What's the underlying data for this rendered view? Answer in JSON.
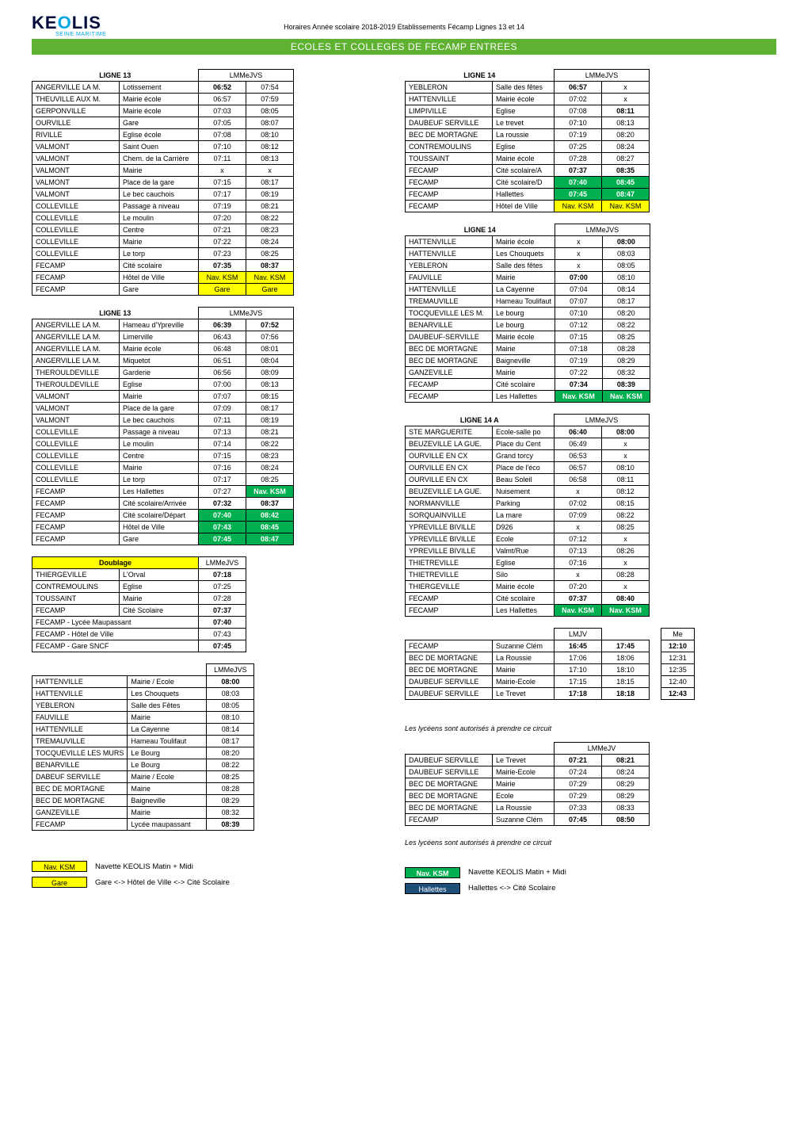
{
  "header": {
    "logo_main": "KE",
    "logo_o": "O",
    "logo_rest": "LIS",
    "logo_sub": "SEINE MARITIME",
    "top_title": "Horaires Année scolaire 2018-2019 Etablissements Fécamp Lignes 13 et 14",
    "banner": "ECOLES ET COLLEGES DE FECAMP ENTREES"
  },
  "colw": {
    "place": 110,
    "stop": 100,
    "t": 60
  },
  "t1": {
    "title": "LIGNE 13",
    "days": "LMMeJVS",
    "rows": [
      [
        "ANGERVILLE LA M.",
        "Lotissement",
        "06:52",
        "07:54",
        "b",
        "",
        ""
      ],
      [
        "THEUVILLE AUX M.",
        "Mairie école",
        "06:57",
        "07:59",
        "",
        "",
        ""
      ],
      [
        "GERPONVILLE",
        "Mairie école",
        "07:03",
        "08:05",
        "",
        "",
        ""
      ],
      [
        "OURVILLE",
        "Gare",
        "07:05",
        "08:07",
        "",
        "",
        ""
      ],
      [
        "RIVILLE",
        "Eglise école",
        "07:08",
        "08:10",
        "",
        "",
        ""
      ],
      [
        "VALMONT",
        "Saint Ouen",
        "07:10",
        "08:12",
        "",
        "",
        ""
      ],
      [
        "VALMONT",
        "Chem. de la Carrière",
        "07:11",
        "08:13",
        "",
        "",
        ""
      ],
      [
        "VALMONT",
        "Mairie",
        "x",
        "x",
        "",
        "",
        ""
      ],
      [
        "VALMONT",
        "Place de la gare",
        "07:15",
        "08:17",
        "",
        "",
        ""
      ],
      [
        "VALMONT",
        "Le bec cauchois",
        "07:17",
        "08:19",
        "",
        "",
        ""
      ],
      [
        "COLLEVILLE",
        "Passage à niveau",
        "07:19",
        "08:21",
        "",
        "",
        ""
      ],
      [
        "COLLEVILLE",
        "Le moulin",
        "07:20",
        "08:22",
        "",
        "",
        ""
      ],
      [
        "COLLEVILLE",
        "Centre",
        "07:21",
        "08:23",
        "",
        "",
        ""
      ],
      [
        "COLLEVILLE",
        "Mairie",
        "07:22",
        "08:24",
        "",
        "",
        ""
      ],
      [
        "COLLEVILLE",
        "Le torp",
        "07:23",
        "08:25",
        "",
        "",
        ""
      ],
      [
        "FECAMP",
        "Cité scolaire",
        "07:35",
        "08:37",
        "b",
        "b",
        ""
      ],
      [
        "FECAMP",
        "Hôtel de Ville",
        "Nav. KSM",
        "Nav. KSM",
        "",
        "",
        "yellow"
      ],
      [
        "FECAMP",
        "Gare",
        "Gare",
        "Gare",
        "",
        "",
        "yellow"
      ]
    ]
  },
  "t2": {
    "title": "LIGNE 13",
    "days": "LMMeJVS",
    "rows": [
      [
        "ANGERVILLE LA M.",
        "Hameau d'Ypreville",
        "06:39",
        "07:52",
        "b",
        "b",
        ""
      ],
      [
        "ANGERVILLE LA M.",
        "Limerville",
        "06:43",
        "07:56",
        "",
        "",
        ""
      ],
      [
        "ANGERVILLE LA M.",
        "Mairie école",
        "06:48",
        "08:01",
        "",
        "",
        ""
      ],
      [
        "ANGERVILLE LA M.",
        "Miquetot",
        "06:51",
        "08:04",
        "",
        "",
        ""
      ],
      [
        "THEROULDEVILLE",
        "Garderie",
        "06:56",
        "08:09",
        "",
        "",
        ""
      ],
      [
        "THEROULDEVILLE",
        "Eglise",
        "07:00",
        "08:13",
        "",
        "",
        ""
      ],
      [
        "VALMONT",
        "Mairie",
        "07:07",
        "08:15",
        "",
        "",
        ""
      ],
      [
        "VALMONT",
        "Place de la gare",
        "07:09",
        "08:17",
        "",
        "",
        ""
      ],
      [
        "VALMONT",
        "Le bec cauchois",
        "07:11",
        "08:19",
        "",
        "",
        ""
      ],
      [
        "COLLEVILLE",
        "Passage à niveau",
        "07:13",
        "08:21",
        "",
        "",
        ""
      ],
      [
        "COLLEVILLE",
        "Le moulin",
        "07:14",
        "08:22",
        "",
        "",
        ""
      ],
      [
        "COLLEVILLE",
        "Centre",
        "07:15",
        "08:23",
        "",
        "",
        ""
      ],
      [
        "COLLEVILLE",
        "Mairie",
        "07:16",
        "08:24",
        "",
        "",
        ""
      ],
      [
        "COLLEVILLE",
        "Le torp",
        "07:17",
        "08:25",
        "",
        "",
        ""
      ],
      [
        "FECAMP",
        "Les Hallettes",
        "07:27",
        "Nav. KSM",
        "",
        "",
        "|green2"
      ],
      [
        "FECAMP",
        "Cité scolaire/Arrivée",
        "07:32",
        "08:37",
        "b",
        "b",
        ""
      ],
      [
        "FECAMP",
        "Cité scolaire/Départ",
        "07:40",
        "08:42",
        "b",
        "b",
        "green"
      ],
      [
        "FECAMP",
        "Hôtel de Ville",
        "07:43",
        "08:45",
        "",
        "",
        "green"
      ],
      [
        "FECAMP",
        "Gare",
        "07:45",
        "08:47",
        "b",
        "b",
        "green"
      ]
    ]
  },
  "t3": {
    "title": "Doublage",
    "days": "LMMeJVS",
    "title_bg": "yellow",
    "rows": [
      [
        "THIERGEVILLE",
        "L'Orval",
        "07:18",
        "b"
      ],
      [
        "CONTREMOULINS",
        "Eglise",
        "07:25",
        ""
      ],
      [
        "TOUSSAINT",
        "Mairie",
        "07:28",
        ""
      ],
      [
        "FECAMP",
        "Cité Scolaire",
        "07:37",
        "b"
      ]
    ],
    "extra": [
      [
        "FECAMP - Lycée Maupassant",
        "07:40",
        "b"
      ],
      [
        "FECAMP - Hôtel de Ville",
        "07:43",
        ""
      ],
      [
        "FECAMP - Gare SNCF",
        "07:45",
        "b"
      ]
    ]
  },
  "t4": {
    "days": "LMMeJVS",
    "rows": [
      [
        "HATTENVILLE",
        "Mairie / Ecole",
        "08:00",
        "b"
      ],
      [
        "HATTENVILLE",
        "Les Chouquets",
        "08:03",
        ""
      ],
      [
        "YEBLERON",
        "Salle des Fêtes",
        "08:05",
        ""
      ],
      [
        "FAUVILLE",
        "Mairie",
        "08:10",
        ""
      ],
      [
        "HATTENVILLE",
        "La Cayenne",
        "08:14",
        ""
      ],
      [
        "TREMAUVILLE",
        "Hameau Toulifaut",
        "08:17",
        ""
      ],
      [
        "TOCQUEVILLE LES MURS",
        "Le Bourg",
        "08:20",
        ""
      ],
      [
        "BENARVILLE",
        "Le Bourg",
        "08:22",
        ""
      ],
      [
        "DABEUF SERVILLE",
        "Mairie / Ecole",
        "08:25",
        ""
      ],
      [
        "BEC DE MORTAGNE",
        "Mairie",
        "08:28",
        ""
      ],
      [
        "BEC DE MORTAGNE",
        "Baigneville",
        "08:29",
        ""
      ],
      [
        "GANZEVILLE",
        "Mairie",
        "08:32",
        ""
      ],
      [
        "FECAMP",
        "Lycée maupassant",
        "08:39",
        "b"
      ]
    ]
  },
  "r1": {
    "title": "LIGNE 14",
    "days": "LMMeJVS",
    "rows": [
      [
        "YEBLERON",
        "Salle des fêtes",
        "06:57",
        "x",
        "b",
        "",
        ""
      ],
      [
        "HATTENVILLE",
        "Mairie école",
        "07:02",
        "x",
        "",
        "",
        ""
      ],
      [
        "LIMPIVILLE",
        "Eglise",
        "07:08",
        "08:11",
        "",
        "b",
        ""
      ],
      [
        "DAUBEUF SERVILLE",
        "Le trevet",
        "07:10",
        "08:13",
        "",
        "",
        ""
      ],
      [
        "BEC DE MORTAGNE",
        "La roussie",
        "07:19",
        "08:20",
        "",
        "",
        ""
      ],
      [
        "CONTREMOULINS",
        "Eglise",
        "07:25",
        "08:24",
        "",
        "",
        ""
      ],
      [
        "TOUSSAINT",
        "Mairie école",
        "07:28",
        "08:27",
        "",
        "",
        ""
      ],
      [
        "FECAMP",
        "Cité scolaire/A",
        "07:37",
        "08:35",
        "b",
        "b",
        ""
      ],
      [
        "FECAMP",
        "Cité scolaire/D",
        "07:40",
        "08:45",
        "b",
        "b",
        "green"
      ],
      [
        "FECAMP",
        "Hallettes",
        "07:45",
        "08:47",
        "b",
        "b",
        "green"
      ],
      [
        "FECAMP",
        "Hôtel de Ville",
        "Nav. KSM",
        "Nav. KSM",
        "",
        "",
        "yellow"
      ]
    ]
  },
  "r2": {
    "title": "LIGNE 14",
    "days": "LMMeJVS",
    "rows": [
      [
        "HATTENVILLE",
        "Mairie école",
        "x",
        "08:00",
        "",
        "b",
        ""
      ],
      [
        "HATTENVILLE",
        "Les Chouquets",
        "x",
        "08:03",
        "",
        "",
        ""
      ],
      [
        "YEBLERON",
        "Salle des fêtes",
        "x",
        "08:05",
        "",
        "",
        ""
      ],
      [
        "FAUVILLE",
        "Mairie",
        "07:00",
        "08:10",
        "b",
        "",
        ""
      ],
      [
        "HATTENVILLE",
        "La Cayenne",
        "07:04",
        "08:14",
        "",
        "",
        ""
      ],
      [
        "TREMAUVILLE",
        "Hameau Toulifaut",
        "07:07",
        "08:17",
        "",
        "",
        ""
      ],
      [
        "TOCQUEVILLE LES M.",
        "Le bourg",
        "07:10",
        "08:20",
        "",
        "",
        ""
      ],
      [
        "BENARVILLE",
        "Le bourg",
        "07:12",
        "08:22",
        "",
        "",
        ""
      ],
      [
        "DAUBEUF-SERVILLE",
        "Mairie école",
        "07:15",
        "08:25",
        "",
        "",
        ""
      ],
      [
        "BEC DE MORTAGNE",
        "Mairie",
        "07:18",
        "08:28",
        "",
        "",
        ""
      ],
      [
        "BEC DE MORTAGNE",
        "Baigneville",
        "07:19",
        "08:29",
        "",
        "",
        ""
      ],
      [
        "GANZEVILLE",
        "Mairie",
        "07:22",
        "08:32",
        "",
        "",
        ""
      ],
      [
        "FECAMP",
        "Cité scolaire",
        "07:34",
        "08:39",
        "b",
        "b",
        ""
      ],
      [
        "FECAMP",
        "Les Hallettes",
        "Nav. KSM",
        "Nav. KSM",
        "",
        "",
        "green"
      ]
    ]
  },
  "r3": {
    "title": "LIGNE 14 A",
    "days": "LMMeJVS",
    "rows": [
      [
        "STE MARGUERITE",
        "Ecole-salle po",
        "06:40",
        "08:00",
        "b",
        "b",
        ""
      ],
      [
        "BEUZEVILLE LA GUE.",
        "Place du Cent",
        "06:49",
        "x",
        "",
        "",
        ""
      ],
      [
        "OURVILLE EN CX",
        "Grand torcy",
        "06:53",
        "x",
        "",
        "",
        ""
      ],
      [
        "OURVILLE EN CX",
        "Place de l'éco",
        "06:57",
        "08:10",
        "",
        "",
        ""
      ],
      [
        "OURVILLE EN CX",
        "Beau Soleil",
        "06:58",
        "08:11",
        "",
        "",
        ""
      ],
      [
        "BEUZEVILLE LA GUE.",
        "Nuisement",
        "x",
        "08:12",
        "",
        "",
        ""
      ],
      [
        "NORMANVILLE",
        "Parking",
        "07:02",
        "08:15",
        "",
        "",
        ""
      ],
      [
        "SORQUAINVILLE",
        "La mare",
        "07:09",
        "08:22",
        "",
        "",
        ""
      ],
      [
        "YPREVILLE BIVILLE",
        "D926",
        "x",
        "08:25",
        "",
        "",
        ""
      ],
      [
        "YPREVILLE BIVILLE",
        "Ecole",
        "07:12",
        "x",
        "",
        "",
        ""
      ],
      [
        "YPREVILLE BIVILLE",
        "Valmt/Rue",
        "07:13",
        "08:26",
        "",
        "",
        ""
      ],
      [
        "THIETREVILLE",
        "Eglise",
        "07:16",
        "x",
        "",
        "",
        ""
      ],
      [
        "THIETREVILLE",
        "Silo",
        "x",
        "08:28",
        "",
        "",
        ""
      ],
      [
        "THIERGEVILLE",
        "Mairie école",
        "07:20",
        "x",
        "",
        "",
        ""
      ],
      [
        "FECAMP",
        "Cité scolaire",
        "07:37",
        "08:40",
        "b",
        "b",
        ""
      ],
      [
        "FECAMP",
        "Les Hallettes",
        "Nav. KSM",
        "Nav. KSM",
        "",
        "",
        "green"
      ]
    ]
  },
  "r4": {
    "days": "LMJV",
    "me_head": "Me",
    "me_first": "12:10",
    "rows": [
      [
        "FECAMP",
        "Suzanne Clém",
        "16:45",
        "17:45",
        "b",
        "b",
        "",
        "12:31"
      ],
      [
        "BEC DE MORTAGNE",
        "La Roussie",
        "17:06",
        "18:06",
        "",
        "",
        "",
        "12:35"
      ],
      [
        "BEC DE MORTAGNE",
        "Mairie",
        "17:10",
        "18:10",
        "",
        "",
        "",
        "12:40"
      ],
      [
        "DAUBEUF SERVILLE",
        "Mairie-Ecole",
        "17:15",
        "18:15",
        "",
        "",
        "",
        "12:43"
      ],
      [
        "DAUBEUF SERVILLE",
        "Le Trevet",
        "17:18",
        "18:18",
        "b",
        "b",
        "",
        ""
      ]
    ],
    "note": "Les lycéens sont autorisés à prendre ce circuit"
  },
  "r5": {
    "days": "LMMeJV",
    "rows": [
      [
        "DAUBEUF SERVILLE",
        "Le Trevet",
        "07:21",
        "08:21",
        "b",
        "b",
        ""
      ],
      [
        "DAUBEUF SERVILLE",
        "Mairie-Ecole",
        "07:24",
        "08:24",
        "",
        "",
        ""
      ],
      [
        "BEC DE MORTAGNE",
        "Mairie",
        "07:29",
        "08:29",
        "",
        "",
        ""
      ],
      [
        "BEC DE MORTAGNE",
        "Ecole",
        "07:29",
        "08:29",
        "",
        "",
        ""
      ],
      [
        "BEC DE MORTAGNE",
        "La Roussie",
        "07:33",
        "08:33",
        "",
        "",
        ""
      ],
      [
        "FECAMP",
        "Suzanne Clém",
        "07:45",
        "08:50",
        "b",
        "b",
        ""
      ]
    ],
    "note": "Les lycéens sont autorisés à prendre ce circuit"
  },
  "legend": {
    "l_nav": "Nav. KSM",
    "l_gare": "Gare",
    "l_nav_txt": "Navette KEOLIS Matin + Midi",
    "l_gare_txt": "Gare <-> Hôtel de Ville <-> Cité Scolaire",
    "r_nav": "Nav. KSM",
    "r_hal": "Hallettes",
    "r_nav_txt": "Navette KEOLIS Matin + Midi",
    "r_hal_txt": "Hallettes <-> Cité Scolaire"
  }
}
